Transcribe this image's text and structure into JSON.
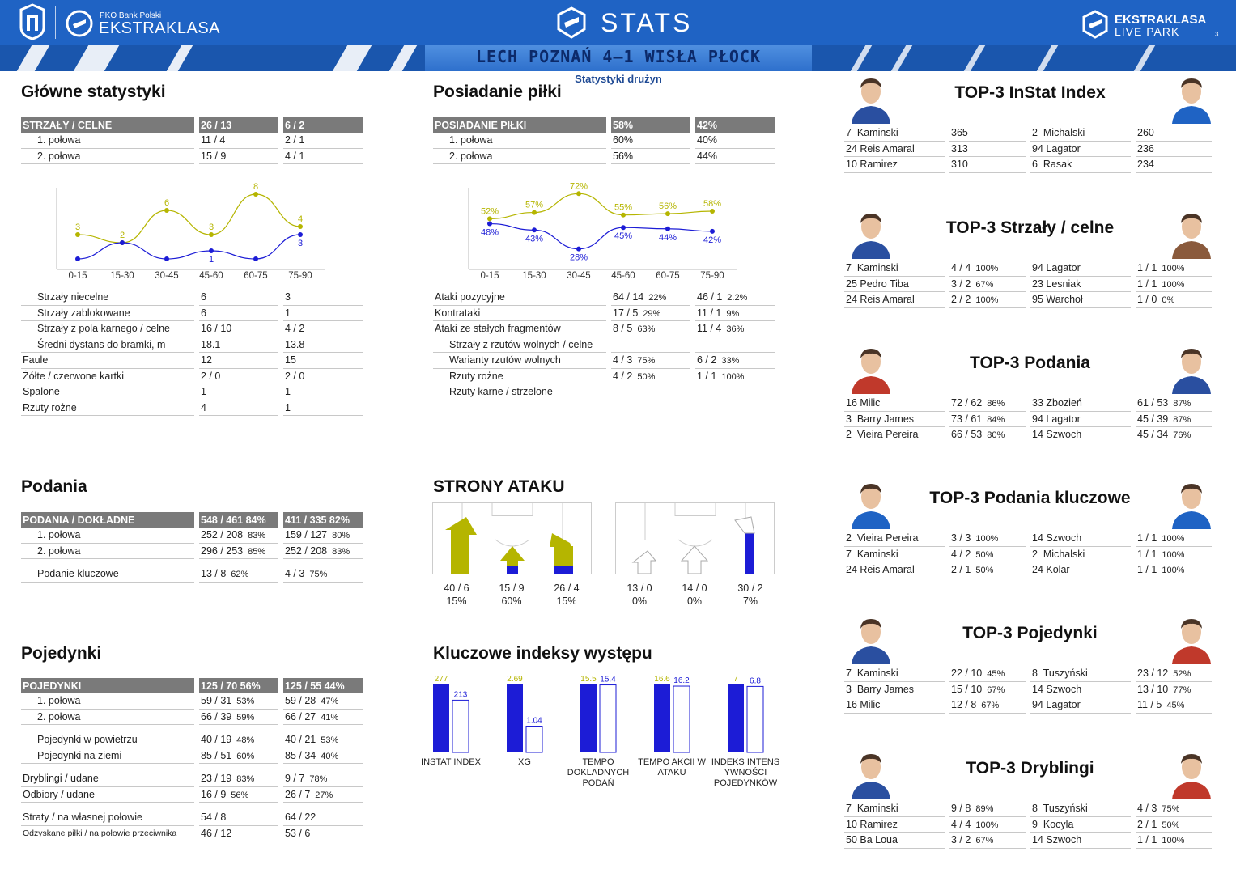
{
  "header": {
    "brand_small": "PKO Bank Polski",
    "brand": "EKSTRAKLASA",
    "stats": "STATS",
    "live1": "EKSTRAKLASA",
    "live2": "LIVE PARK",
    "page_num": "3",
    "match": "LECH POZNAŃ 4–1 WISŁA PŁOCK",
    "subtitle": "Statystyki drużyn"
  },
  "colors": {
    "home": "#1c1cd6",
    "away": "#b5b500",
    "header_blue": "#1f63c4"
  },
  "main": {
    "title": "Główne statystyki",
    "head": [
      "STRZAŁY / CELNE",
      "26 / 13",
      "6 / 2"
    ],
    "halves": [
      [
        "1. połowa",
        "11 / 4",
        "2 / 1"
      ],
      [
        "2. połowa",
        "15 / 9",
        "4 / 1"
      ]
    ],
    "rows": [
      [
        "Strzały niecelne",
        "6",
        "3",
        true
      ],
      [
        "Strzały zablokowane",
        "6",
        "1",
        true
      ],
      [
        "Strzały z pola karnego / celne",
        "16 / 10",
        "4 / 2",
        true
      ],
      [
        "Średni dystans do bramki, m",
        "18.1",
        "13.8",
        true
      ],
      [
        "Faule",
        "12",
        "15",
        false
      ],
      [
        "Żółte / czerwone kartki",
        "2 / 0",
        "2 / 0",
        false
      ],
      [
        "Spalone",
        "1",
        "1",
        false
      ],
      [
        "Rzuty rożne",
        "4",
        "1",
        false
      ]
    ]
  },
  "possession": {
    "title": "Posiadanie piłki",
    "head": [
      "POSIADANIE PIŁKI",
      "58%",
      "42%"
    ],
    "halves": [
      [
        "1. połowa",
        "60%",
        "40%"
      ],
      [
        "2. połowa",
        "56%",
        "44%"
      ]
    ],
    "rows": [
      [
        "Ataki pozycyjne",
        "64 / 14",
        "22%",
        "46 / 1",
        "2.2%",
        false
      ],
      [
        "Kontrataki",
        "17 / 5",
        "29%",
        "11 / 1",
        "9%",
        false
      ],
      [
        "Ataki ze stałych fragmentów",
        "8 / 5",
        "63%",
        "11 / 4",
        "36%",
        false
      ],
      [
        "Strzały z rzutów wolnych / celne",
        "-",
        "",
        "-",
        "",
        true
      ],
      [
        "Warianty rzutów wolnych",
        "4 / 3",
        "75%",
        "6 / 2",
        "33%",
        true
      ],
      [
        "Rzuty rożne",
        "4 / 2",
        "50%",
        "1 / 1",
        "100%",
        true
      ],
      [
        "Rzuty karne / strzelone",
        "-",
        "",
        "-",
        "",
        true
      ]
    ]
  },
  "passes": {
    "title": "Podania",
    "head": [
      "PODANIA / DOKŁADNE",
      "548 / 461 84%",
      "411 / 335 82%"
    ],
    "rows": [
      [
        "1. połowa",
        "252 / 208",
        "83%",
        "159 / 127",
        "80%"
      ],
      [
        "2. połowa",
        "296 / 253",
        "85%",
        "252 / 208",
        "83%"
      ]
    ],
    "key": [
      "Podanie kluczowe",
      "13 / 8",
      "62%",
      "4 / 3",
      "75%"
    ]
  },
  "duels": {
    "title": "Pojedynki",
    "head": [
      "POJEDYNKI",
      "125 / 70 56%",
      "125 / 55 44%"
    ],
    "groups": [
      [
        [
          "1. połowa",
          "59 / 31",
          "53%",
          "59 / 28",
          "47%",
          true
        ],
        [
          "2. połowa",
          "66 / 39",
          "59%",
          "66 / 27",
          "41%",
          true
        ]
      ],
      [
        [
          "Pojedynki w powietrzu",
          "40 / 19",
          "48%",
          "40 / 21",
          "53%",
          true
        ],
        [
          "Pojedynki na ziemi",
          "85 / 51",
          "60%",
          "85 / 34",
          "40%",
          true
        ]
      ],
      [
        [
          "Dryblingi / udane",
          "23 / 19",
          "83%",
          "9 / 7",
          "78%",
          false
        ],
        [
          "Odbiory / udane",
          "16 / 9",
          "56%",
          "26 / 7",
          "27%",
          false
        ]
      ],
      [
        [
          "Straty / na własnej połowie",
          "54 / 8",
          "",
          "64 / 22",
          "",
          false
        ],
        [
          "Odzyskane piłki / na połowie przeciwnika",
          "46 / 12",
          "",
          "53 / 6",
          "",
          false
        ]
      ]
    ]
  },
  "chart_data": [
    {
      "type": "line",
      "title": "",
      "x": [
        "0-15",
        "15-30",
        "30-45",
        "45-60",
        "60-75",
        "75-90"
      ],
      "series": [
        {
          "values": [
            3,
            2,
            6,
            3,
            8,
            4
          ]
        },
        {
          "values": [
            0,
            2,
            0,
            1,
            0,
            3
          ]
        }
      ],
      "point_labels": [
        [
          "3",
          "2",
          "6",
          "3",
          "8",
          "4"
        ],
        [
          "",
          "",
          "",
          "1",
          "",
          "3"
        ]
      ]
    },
    {
      "type": "line",
      "title": "",
      "x": [
        "0-15",
        "15-30",
        "30-45",
        "45-60",
        "60-75",
        "75-90"
      ],
      "series": [
        {
          "values": [
            52,
            57,
            72,
            55,
            56,
            58
          ]
        },
        {
          "values": [
            48,
            43,
            28,
            45,
            44,
            42
          ]
        }
      ],
      "point_labels": [
        [
          "52%",
          "57%",
          "72%",
          "55%",
          "56%",
          "58%"
        ],
        [
          "48%",
          "43%",
          "28%",
          "45%",
          "44%",
          "42%"
        ]
      ]
    },
    {
      "type": "bar",
      "title": "Kluczowe indeksy występu",
      "categories": [
        "INSTAT INDEX",
        "XG",
        "TEMPO DOKLADNYCH PODAŃ",
        "TEMPO AKCII W ATAKU",
        "INDEKS INTENSYWNOŚCI POJEDYNKÓW"
      ],
      "series": [
        {
          "values": [
            277,
            2.69,
            15.5,
            16.6,
            7
          ]
        },
        {
          "values": [
            213,
            1.04,
            15.4,
            16.2,
            6.8
          ]
        }
      ],
      "value_labels": [
        [
          "277",
          "2.69",
          "15.5",
          "16.6",
          "7"
        ],
        [
          "213",
          "1.04",
          "15.4",
          "16.2",
          "6.8"
        ]
      ],
      "label_lines": [
        [
          "INSTAT INDEX"
        ],
        [
          "XG"
        ],
        [
          "TEMPO",
          "DOKLADNYCH",
          "PODAŃ"
        ],
        [
          "TEMPO AKCII W",
          "ATAKU"
        ],
        [
          "INDEKS INTENS",
          "YWNOŚCI",
          "POJEDYNKÓW"
        ]
      ]
    }
  ],
  "attack": {
    "title": "STRONY ATAKU",
    "home": [
      [
        "40 / 6",
        "15%"
      ],
      [
        "15 / 9",
        "60%"
      ],
      [
        "26 / 4",
        "15%"
      ]
    ],
    "away": [
      [
        "13 / 0",
        "0%"
      ],
      [
        "14 / 0",
        "0%"
      ],
      [
        "30 / 2",
        "7%"
      ]
    ]
  },
  "tops": [
    {
      "title": "TOP-3 InStat Index",
      "pct": false,
      "left": [
        [
          "7  Kaminski",
          "365"
        ],
        [
          "24 Reis Amaral",
          "313"
        ],
        [
          "10 Ramirez",
          "310"
        ]
      ],
      "right": [
        [
          "2  Michalski",
          "260"
        ],
        [
          "94 Lagator",
          "236"
        ],
        [
          "6  Rasak",
          "234"
        ]
      ]
    },
    {
      "title": "TOP-3 Strzały / celne",
      "pct": true,
      "left": [
        [
          "7  Kaminski",
          "4 / 4",
          "100%"
        ],
        [
          "25 Pedro Tiba",
          "3 / 2",
          "67%"
        ],
        [
          "24 Reis Amaral",
          "2 / 2",
          "100%"
        ]
      ],
      "right": [
        [
          "94 Lagator",
          "1 / 1",
          "100%"
        ],
        [
          "23 Lesniak",
          "1 / 1",
          "100%"
        ],
        [
          "95 Warchoł",
          "1 / 0",
          "0%"
        ]
      ]
    },
    {
      "title": "TOP-3 Podania",
      "pct": true,
      "left": [
        [
          "16 Milic",
          "72 / 62",
          "86%"
        ],
        [
          "3  Barry James",
          "73 / 61",
          "84%"
        ],
        [
          "2  Vieira Pereira",
          "66 / 53",
          "80%"
        ]
      ],
      "right": [
        [
          "33 Zbozień",
          "61 / 53",
          "87%"
        ],
        [
          "94 Lagator",
          "45 / 39",
          "87%"
        ],
        [
          "14 Szwoch",
          "45 / 34",
          "76%"
        ]
      ]
    },
    {
      "title": "TOP-3 Podania kluczowe",
      "pct": true,
      "left": [
        [
          "2  Vieira Pereira",
          "3 / 3",
          "100%"
        ],
        [
          "7  Kaminski",
          "4 / 2",
          "50%"
        ],
        [
          "24 Reis Amaral",
          "2 / 1",
          "50%"
        ]
      ],
      "right": [
        [
          "14 Szwoch",
          "1 / 1",
          "100%"
        ],
        [
          "2  Michalski",
          "1 / 1",
          "100%"
        ],
        [
          "24 Kolar",
          "1 / 1",
          "100%"
        ]
      ]
    },
    {
      "title": "TOP-3 Pojedynki",
      "pct": true,
      "left": [
        [
          "7  Kaminski",
          "22 / 10",
          "45%"
        ],
        [
          "3  Barry James",
          "15 / 10",
          "67%"
        ],
        [
          "16 Milic",
          "12 / 8",
          "67%"
        ]
      ],
      "right": [
        [
          "8  Tuszyński",
          "23 / 12",
          "52%"
        ],
        [
          "14 Szwoch",
          "13 / 10",
          "77%"
        ],
        [
          "94 Lagator",
          "11 / 5",
          "45%"
        ]
      ]
    },
    {
      "title": "TOP-3 Dryblingi",
      "pct": true,
      "left": [
        [
          "7  Kaminski",
          "9 / 8",
          "89%"
        ],
        [
          "10 Ramirez",
          "4 / 4",
          "100%"
        ],
        [
          "50 Ba Loua",
          "3 / 2",
          "67%"
        ]
      ],
      "right": [
        [
          "8  Tuszyński",
          "4 / 3",
          "75%"
        ],
        [
          "9  Kocyla",
          "2 / 1",
          "50%"
        ],
        [
          "14 Szwoch",
          "1 / 1",
          "100%"
        ]
      ]
    }
  ]
}
